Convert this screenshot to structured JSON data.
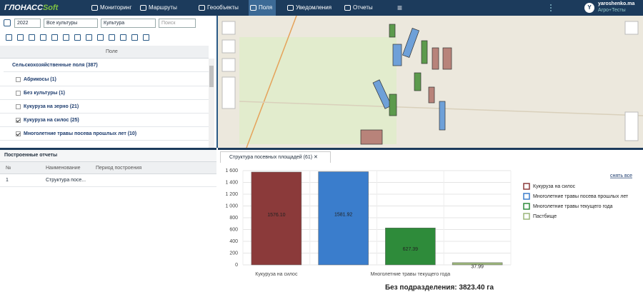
{
  "header": {
    "logo": "ГЛОНАСС",
    "logo_soft": "Soft",
    "tabs": [
      "Мониторинг",
      "Маршруты",
      "Геообъекты",
      "Поля",
      "Уведомления",
      "Отчеты"
    ],
    "avatar": "Y",
    "user": "yaroshenko.ma",
    "org": "Агро+Тесты"
  },
  "filters": {
    "year": "2022",
    "crops": "Все культуры",
    "group": "Культура",
    "search": "Поиск"
  },
  "fields_header": "Поле",
  "tree": {
    "root": "Сельскохозяйственные поля (387)",
    "items": [
      "Абрикосы (1)",
      "Без культуры (1)",
      "Кукуруза на зерно (21)",
      "Кукуруза на силос (25)",
      "Многолетние травы посева прошлых лет (10)"
    ]
  },
  "reports": {
    "title": "Построенные отчеты",
    "columns": [
      "№",
      "Наименование",
      "Период построения"
    ],
    "rows": [
      [
        "1",
        "Структура посе..."
      ]
    ]
  },
  "chart_tab": "Структура посевных площадей (61)",
  "clear_all": "снять все",
  "chart_data": {
    "type": "bar",
    "categories": [
      "Кукуруза на силос",
      null,
      "Многолетние травы текущего года",
      null
    ],
    "values": [
      1576.1,
      1581.92,
      627.39,
      37.99
    ],
    "value_labels": [
      "1576.10",
      "1581.92",
      "627.39",
      "37.99"
    ],
    "colors": [
      "#8b3a3a",
      "#3a7dcc",
      "#2e8b3a",
      "#9bb57a"
    ],
    "legend": [
      "Кукуруза на силос",
      "Многолетние травы посева прошлых лет",
      "Многолетние травы текущего года",
      "Пастбище"
    ],
    "legend_position": "right",
    "ylim": [
      0,
      1600
    ],
    "yticks": [
      0,
      200,
      400,
      600,
      800,
      {
        "value": 1000,
        "label": "1 000"
      },
      {
        "value": 1200,
        "label": "1 200"
      },
      {
        "value": 1400,
        "label": "1 400"
      },
      {
        "value": 1600,
        "label": "1 600"
      }
    ],
    "grid": true,
    "footer": "Без подразделения: 3823.40 га"
  }
}
